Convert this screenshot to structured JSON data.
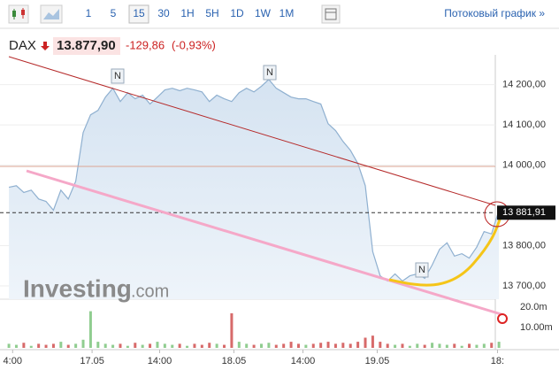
{
  "toolbar": {
    "intervals": [
      "1",
      "5",
      "15",
      "30",
      "1H",
      "5H",
      "1D",
      "1W",
      "1M"
    ],
    "selected": 2,
    "streaming_link": "Потоковый график »"
  },
  "header": {
    "symbol": "DAX",
    "price": "13.877,90",
    "change": "-129,86",
    "change_pct": "(-0,93%)"
  },
  "watermark": {
    "brand": "Investing",
    "suffix": ".com"
  },
  "news_markers": [
    "N",
    "N",
    "N"
  ],
  "chart_data": {
    "type": "line",
    "color": "#8fb0d0",
    "values": [
      13945,
      13949,
      13932,
      13938,
      13916,
      13910,
      13888,
      13938,
      13916,
      13960,
      14081,
      14125,
      14136,
      14169,
      14191,
      14158,
      14180,
      14165,
      14174,
      14152,
      14169,
      14187,
      14191,
      14185,
      14191,
      14187,
      14182,
      14158,
      14174,
      14165,
      14158,
      14180,
      14191,
      14182,
      14196,
      14213,
      14191,
      14180,
      14169,
      14165,
      14165,
      14158,
      14152,
      14103,
      14086,
      14059,
      14037,
      14004,
      13949,
      13785,
      13725,
      13712,
      13730,
      13712,
      13725,
      13730,
      13719,
      13752,
      13791,
      13807,
      13774,
      13780,
      13769,
      13796,
      13835,
      13829,
      13888
    ],
    "ylim": [
      13667,
      14274
    ],
    "yticks": [
      {
        "value": 13700,
        "label": "13 700,00"
      },
      {
        "value": 13800,
        "label": "13 800,00"
      },
      {
        "value": 14000,
        "label": "14 000,00"
      },
      {
        "value": 14100,
        "label": "14 100,00"
      },
      {
        "value": 14200,
        "label": "14 200,00"
      }
    ],
    "xlim": [
      -1.2,
      66.7
    ],
    "xticks": [
      {
        "value": 0.5,
        "label": "4:00"
      },
      {
        "value": 11.2,
        "label": "17.05"
      },
      {
        "value": 20.3,
        "label": "14:00"
      },
      {
        "value": 30.3,
        "label": "18.05"
      },
      {
        "value": 39.6,
        "label": "14:00"
      },
      {
        "value": 49.6,
        "label": "19.05"
      },
      {
        "value": 65.8,
        "label": "18:"
      }
    ],
    "last_price": {
      "value": 13881.91,
      "label": "13 881,91"
    },
    "volume": {
      "values": [
        2,
        1.5,
        2.5,
        1,
        2,
        1.5,
        2,
        3,
        1.5,
        2,
        4,
        18,
        3,
        2,
        1.5,
        2,
        1,
        2.5,
        1.5,
        2,
        3,
        2,
        1.5,
        2,
        1,
        2,
        1.5,
        2.5,
        2,
        1.5,
        17,
        3,
        2,
        1.5,
        2,
        2.5,
        1.5,
        2,
        3,
        2,
        1.5,
        2,
        2.5,
        3,
        2,
        2.5,
        2,
        3,
        5,
        6,
        3,
        2,
        1.5,
        2,
        1,
        2,
        1.5,
        2.5,
        2,
        1.5,
        2,
        1,
        2,
        1.5,
        2,
        2.5,
        3
      ],
      "y2lim": [
        0,
        22.6
      ],
      "y2ticks": [
        {
          "value": 10,
          "label": "10.00m"
        },
        {
          "value": 20,
          "label": "20.0m"
        }
      ]
    }
  }
}
